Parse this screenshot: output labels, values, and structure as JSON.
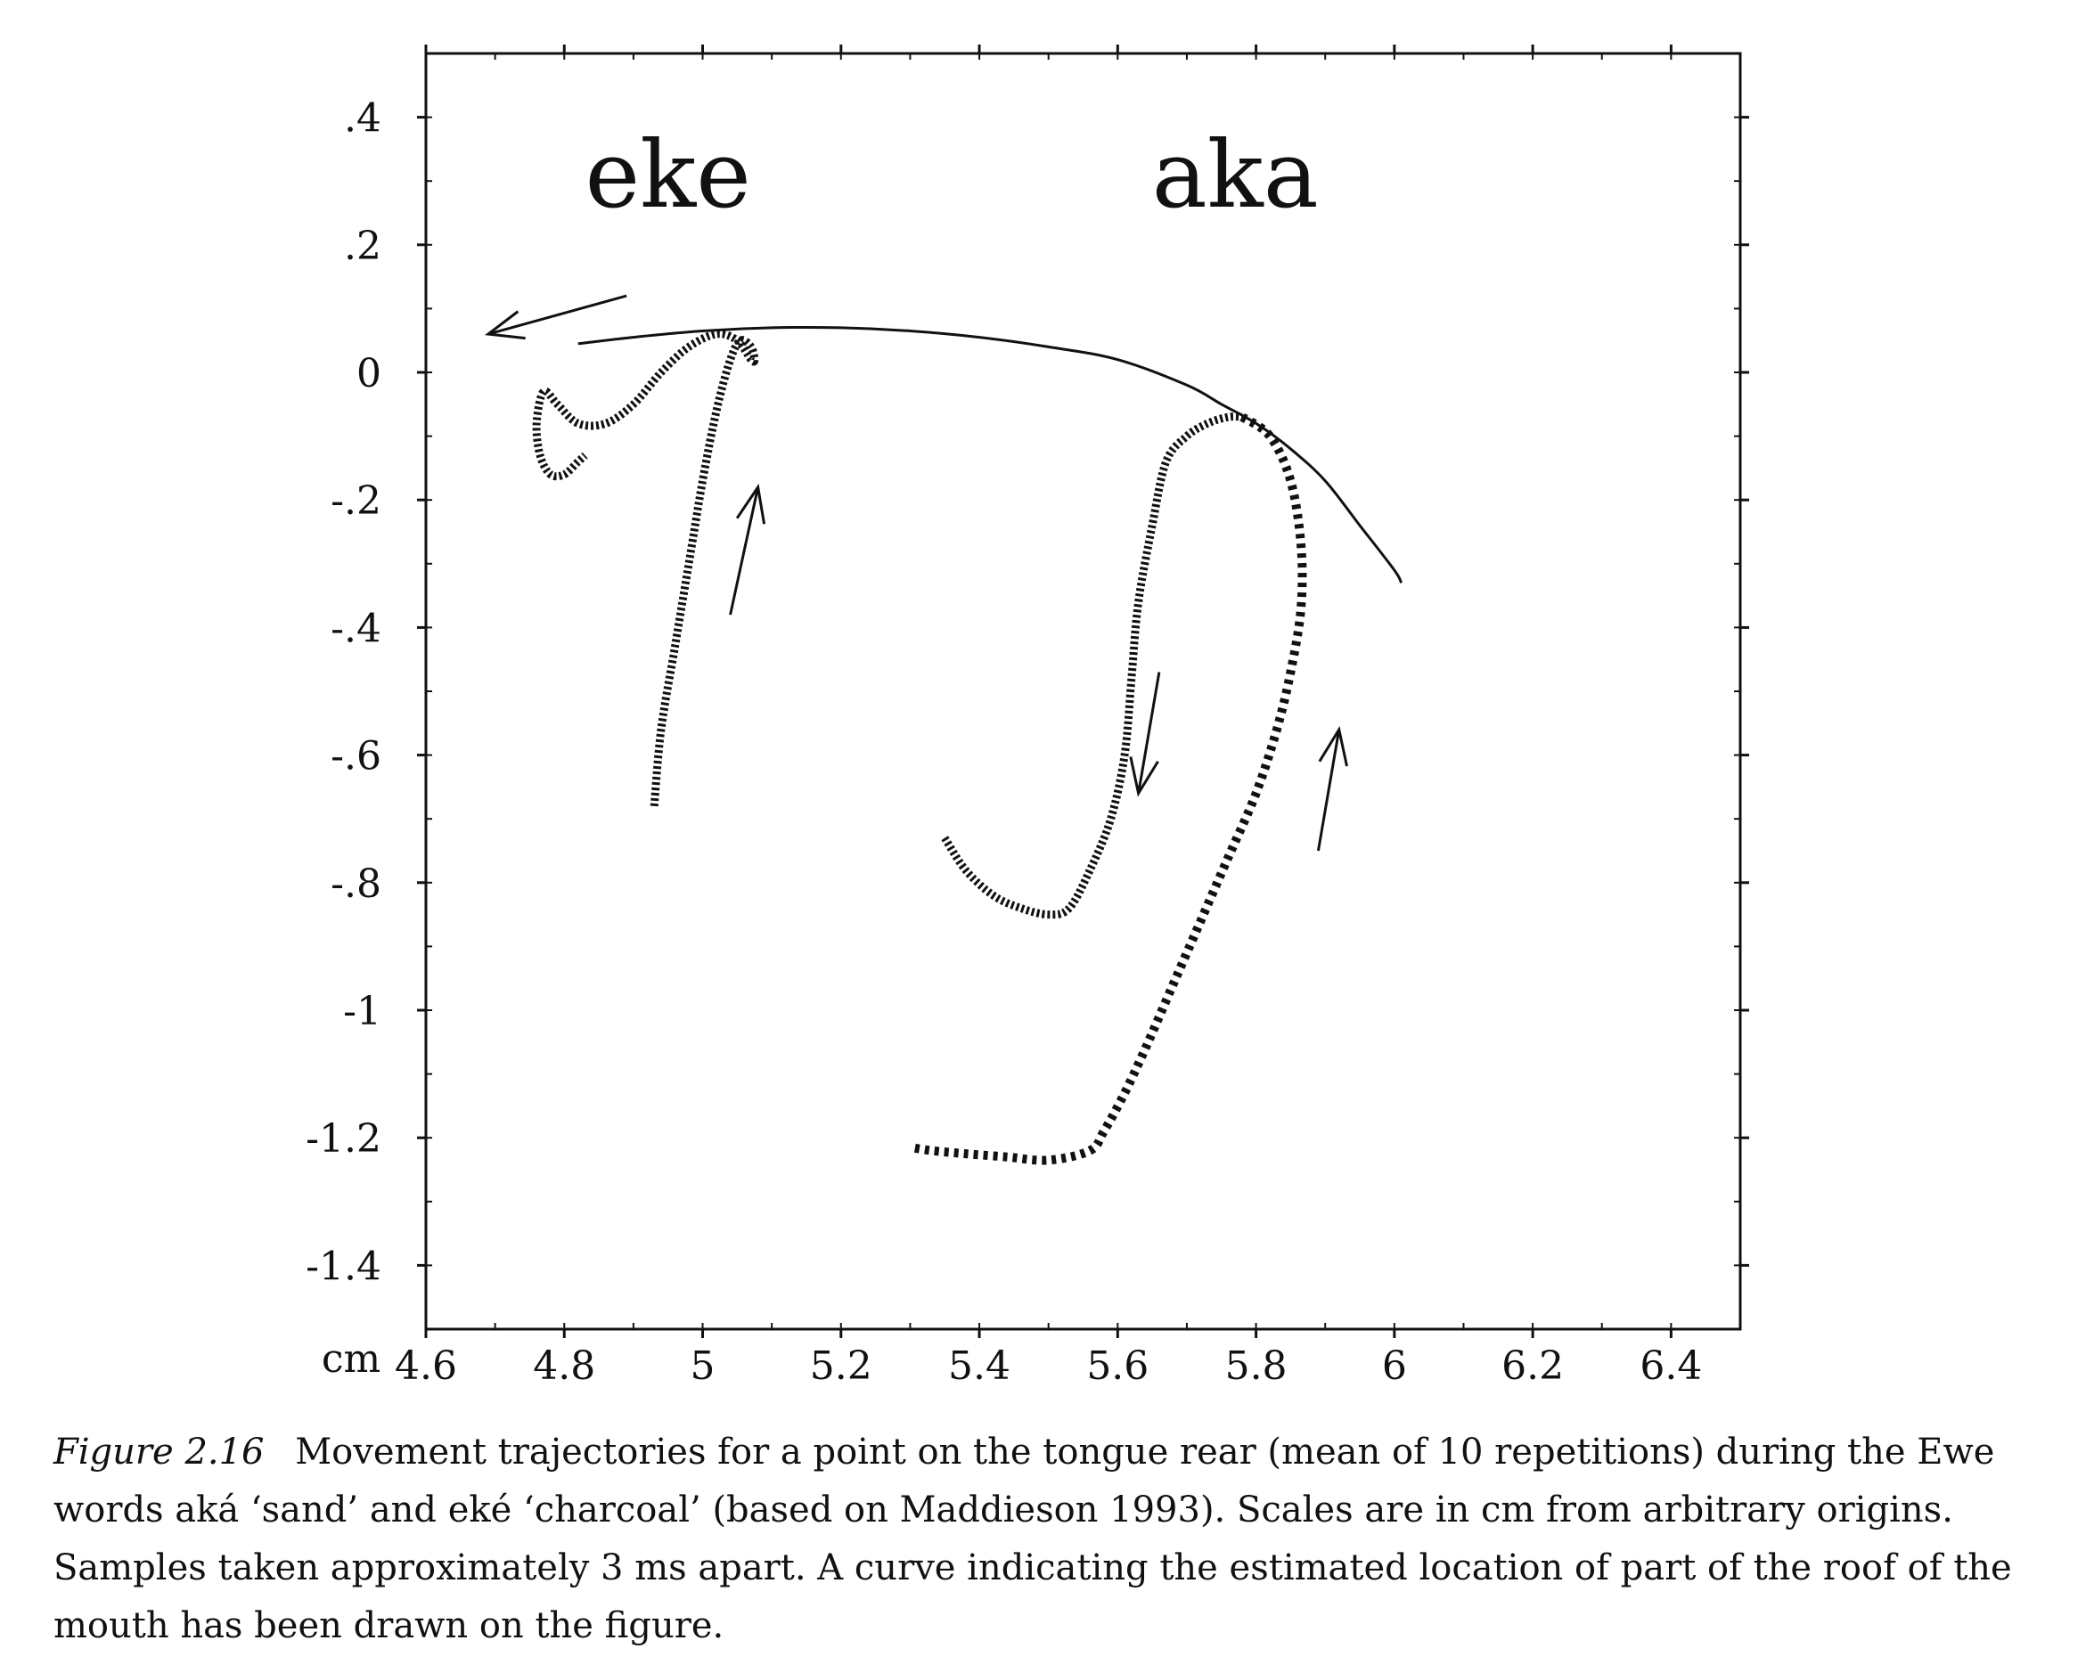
{
  "chart_data": {
    "type": "line",
    "xlim": [
      4.6,
      6.5
    ],
    "ylim": [
      -1.5,
      0.5
    ],
    "x_ticks": [
      "4.6",
      "4.8",
      "5",
      "5.2",
      "5.4",
      "5.6",
      "5.8",
      "6",
      "6.2",
      "6.4"
    ],
    "x_tick_values": [
      4.6,
      4.8,
      5.0,
      5.2,
      5.4,
      5.6,
      5.8,
      6.0,
      6.2,
      6.4
    ],
    "y_ticks": [
      ".4",
      ".2",
      "0",
      "-.2",
      "-.4",
      "-.6",
      "-.8",
      "-1",
      "-1.2",
      "-1.4"
    ],
    "y_tick_values": [
      0.4,
      0.2,
      0.0,
      -0.2,
      -0.4,
      -0.6,
      -0.8,
      -1.0,
      -1.2,
      -1.4
    ],
    "unit_label": "cm",
    "annotations": [
      {
        "text": "eke",
        "x": 4.95,
        "y": 0.26
      },
      {
        "text": "aka",
        "x": 5.77,
        "y": 0.26
      }
    ],
    "series": [
      {
        "marker": "thick",
        "x": [
          4.93,
          4.94,
          4.96,
          4.98,
          5.0,
          5.02,
          5.04,
          5.055,
          5.07,
          5.075,
          5.07,
          5.05,
          5.02,
          4.98,
          4.94,
          4.9,
          4.86,
          4.82,
          4.79,
          4.77,
          4.76,
          4.765,
          4.78,
          4.8,
          4.82,
          4.83
        ],
        "y": [
          -0.68,
          -0.56,
          -0.43,
          -0.3,
          -0.17,
          -0.06,
          0.02,
          0.05,
          0.04,
          0.02,
          0.02,
          0.05,
          0.06,
          0.04,
          0.0,
          -0.05,
          -0.08,
          -0.08,
          -0.05,
          -0.03,
          -0.08,
          -0.13,
          -0.16,
          -0.16,
          -0.14,
          -0.13
        ]
      },
      {
        "marker": "thick",
        "x": [
          5.35,
          5.38,
          5.42,
          5.46,
          5.5,
          5.53,
          5.56,
          5.59,
          5.61,
          5.62,
          5.63,
          5.65,
          5.67,
          5.7,
          5.73,
          5.76,
          5.78
        ],
        "y": [
          -0.73,
          -0.78,
          -0.82,
          -0.84,
          -0.85,
          -0.84,
          -0.78,
          -0.7,
          -0.6,
          -0.48,
          -0.36,
          -0.24,
          -0.14,
          -0.1,
          -0.08,
          -0.07,
          -0.07
        ]
      },
      {
        "marker": "dotted",
        "x": [
          5.78,
          5.82,
          5.85,
          5.865,
          5.865,
          5.85,
          5.83,
          5.8,
          5.76,
          5.72,
          5.68,
          5.64,
          5.61,
          5.58,
          5.56,
          5.5,
          5.44,
          5.38,
          5.33,
          5.3
        ],
        "y": [
          -0.07,
          -0.1,
          -0.17,
          -0.27,
          -0.37,
          -0.47,
          -0.56,
          -0.66,
          -0.76,
          -0.86,
          -0.96,
          -1.06,
          -1.13,
          -1.19,
          -1.22,
          -1.235,
          -1.23,
          -1.225,
          -1.22,
          -1.215
        ]
      },
      {
        "marker": "thin",
        "x": [
          4.82,
          4.9,
          5.0,
          5.1,
          5.2,
          5.3,
          5.4,
          5.5,
          5.6,
          5.7,
          5.75,
          5.8,
          5.85,
          5.9,
          5.95,
          6.0,
          6.01
        ],
        "y": [
          0.045,
          0.055,
          0.065,
          0.07,
          0.07,
          0.065,
          0.055,
          0.04,
          0.02,
          -0.02,
          -0.05,
          -0.08,
          -0.12,
          -0.17,
          -0.24,
          -0.31,
          -0.33
        ]
      }
    ],
    "arrows": [
      {
        "from": [
          4.89,
          0.12
        ],
        "to": [
          4.69,
          0.06
        ]
      },
      {
        "from": [
          5.04,
          -0.38
        ],
        "to": [
          5.08,
          -0.18
        ]
      },
      {
        "from": [
          5.66,
          -0.47
        ],
        "to": [
          5.63,
          -0.66
        ]
      },
      {
        "from": [
          5.89,
          -0.75
        ],
        "to": [
          5.92,
          -0.56
        ]
      }
    ]
  },
  "caption": {
    "label": "Figure",
    "number": "2.16",
    "text": "Movement trajectories for a point on the tongue rear (mean of 10 repetitions) during the Ewe words aká ‘sand’ and eké ‘charcoal’ (based on Maddieson 1993). Scales are in cm from arbitrary origins.  Samples taken approximately 3 ms apart.  A curve indicating the estimated location of part of the roof of the mouth has been drawn on the figure."
  }
}
